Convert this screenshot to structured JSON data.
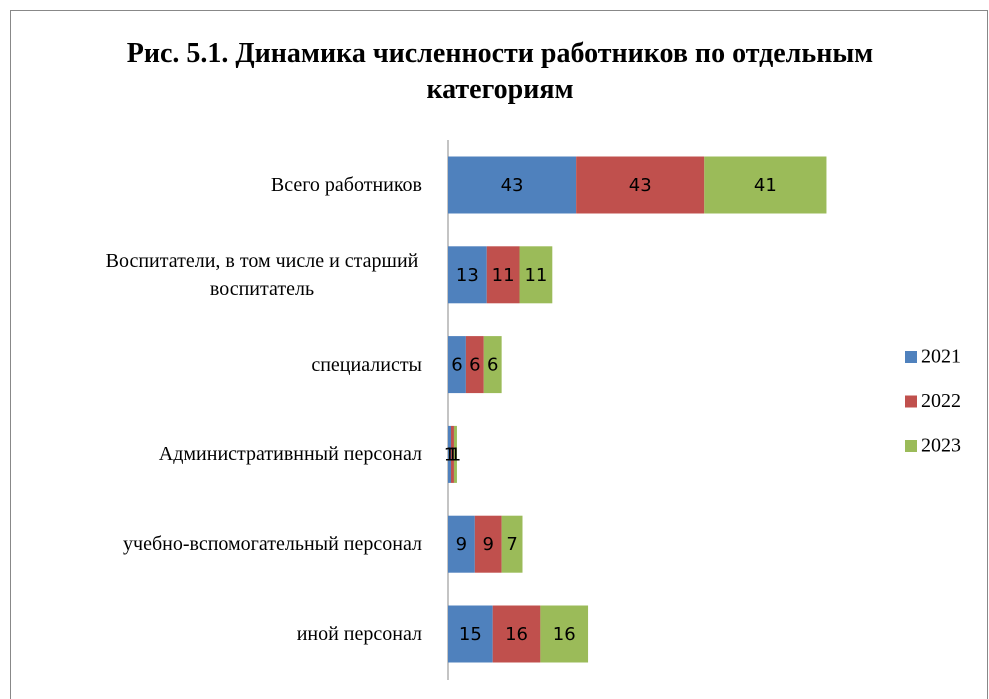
{
  "chart_data": {
    "type": "stacked-bar-horizontal",
    "title": "Рис. 5.1. Динамика численности работников по отдельным категориям",
    "categories": [
      "Всего работников",
      "Воспитатели, в том числе и старший воспитатель",
      "специалисты",
      "Административнный персонал",
      "учебно-вспомогательный персонал",
      "иной персонал"
    ],
    "series": [
      {
        "name": "2021",
        "color": "#4f81bd",
        "values": [
          43,
          13,
          6,
          1,
          9,
          15
        ]
      },
      {
        "name": "2022",
        "color": "#c0504d",
        "values": [
          43,
          11,
          6,
          1,
          9,
          16
        ]
      },
      {
        "name": "2023",
        "color": "#9bbb59",
        "values": [
          41,
          11,
          6,
          1,
          7,
          16
        ]
      }
    ],
    "legend": "right"
  }
}
